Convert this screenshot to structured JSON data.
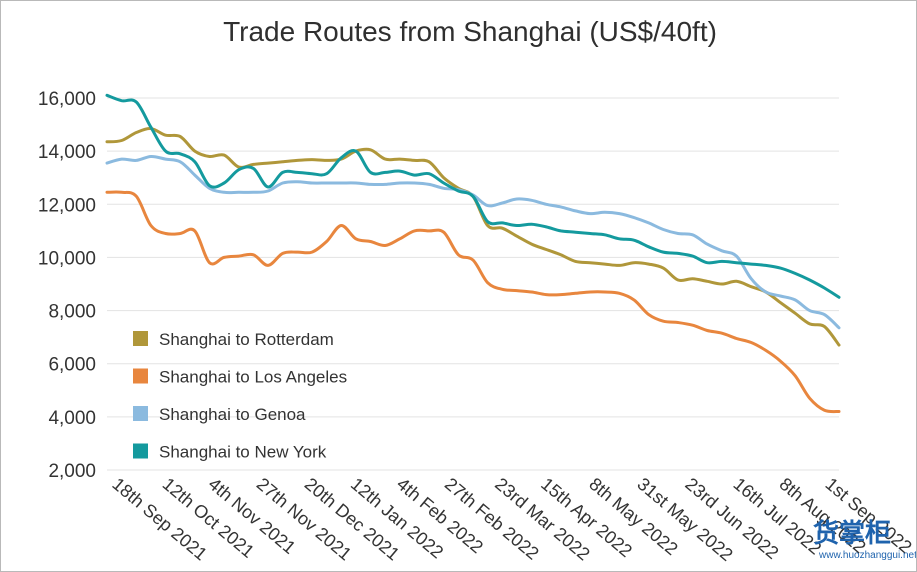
{
  "chart_data": {
    "type": "line",
    "title": "Trade Routes from Shanghai (US$/40ft)",
    "xlabel": "",
    "ylabel": "",
    "ylim": [
      2000,
      16000
    ],
    "y_ticks": [
      "2,000",
      "4,000",
      "6,000",
      "8,000",
      "10,000",
      "12,000",
      "14,000",
      "16,000"
    ],
    "y_tick_values": [
      2000,
      4000,
      6000,
      8000,
      10000,
      12000,
      14000,
      16000
    ],
    "x_ticks": [
      "18th Sep 2021",
      "12th Oct 2021",
      "4th Nov 2021",
      "27th Nov 2021",
      "20th Dec 2021",
      "12th Jan 2022",
      "4th Feb 2022",
      "27th Feb 2022",
      "23rd Mar 2022",
      "15th Apr 2022",
      "8th May 2022",
      "31st May 2022",
      "23rd Jun 2022",
      "16th Jul 2022",
      "8th Aug 2022",
      "1st Sep 2022"
    ],
    "x_tick_positions": [
      0,
      3.43,
      6.57,
      9.86,
      13.14,
      16.29,
      19.43,
      22.71,
      26.14,
      29.29,
      32.57,
      35.86,
      39.14,
      42.43,
      45.57,
      48.71
    ],
    "grid": true,
    "legend_position": "lower-left",
    "series": [
      {
        "name": "Shanghai to Rotterdam",
        "color": "#b0973a",
        "x": [
          0,
          1,
          2,
          3,
          4,
          5,
          6,
          7,
          8,
          9,
          10,
          11,
          12,
          13,
          14,
          15,
          16,
          17,
          18,
          19,
          20,
          21,
          22,
          23,
          24,
          25,
          26,
          27,
          28,
          29,
          30,
          31,
          32,
          33,
          34,
          35,
          36,
          37,
          38,
          39,
          40,
          41,
          42,
          43,
          44,
          45,
          46,
          47,
          48,
          49,
          50
        ],
        "values": [
          14350,
          14400,
          14700,
          14850,
          14600,
          14550,
          14000,
          13800,
          13850,
          13400,
          13500,
          13550,
          13600,
          13650,
          13680,
          13650,
          13700,
          14000,
          14050,
          13700,
          13700,
          13650,
          13600,
          13000,
          12600,
          12300,
          11200,
          11100,
          10800,
          10500,
          10300,
          10100,
          9850,
          9800,
          9750,
          9700,
          9800,
          9750,
          9600,
          9150,
          9200,
          9100,
          9000,
          9100,
          8900,
          8700,
          8300,
          7900,
          7500,
          7400,
          6700
        ]
      },
      {
        "name": "Shanghai to Los Angeles",
        "color": "#e8863e",
        "x": [
          0,
          1,
          2,
          3,
          4,
          5,
          6,
          7,
          8,
          9,
          10,
          11,
          12,
          13,
          14,
          15,
          16,
          17,
          18,
          19,
          20,
          21,
          22,
          23,
          24,
          25,
          26,
          27,
          28,
          29,
          30,
          31,
          32,
          33,
          34,
          35,
          36,
          37,
          38,
          39,
          40,
          41,
          42,
          43,
          44,
          45,
          46,
          47,
          48,
          49,
          50
        ],
        "values": [
          12450,
          12450,
          12300,
          11200,
          10900,
          10900,
          11000,
          9800,
          10000,
          10050,
          10100,
          9700,
          10150,
          10200,
          10200,
          10600,
          11200,
          10700,
          10600,
          10450,
          10700,
          11000,
          11000,
          10950,
          10100,
          9900,
          9050,
          8800,
          8750,
          8700,
          8600,
          8600,
          8650,
          8700,
          8700,
          8650,
          8400,
          7850,
          7600,
          7550,
          7450,
          7250,
          7150,
          6950,
          6800,
          6500,
          6100,
          5550,
          4700,
          4250,
          4200
        ]
      },
      {
        "name": "Shanghai to Genoa",
        "color": "#8bbadf",
        "x": [
          0,
          1,
          2,
          3,
          4,
          5,
          6,
          7,
          8,
          9,
          10,
          11,
          12,
          13,
          14,
          15,
          16,
          17,
          18,
          19,
          20,
          21,
          22,
          23,
          24,
          25,
          26,
          27,
          28,
          29,
          30,
          31,
          32,
          33,
          34,
          35,
          36,
          37,
          38,
          39,
          40,
          41,
          42,
          43,
          44,
          45,
          46,
          47,
          48,
          49,
          50
        ],
        "values": [
          13550,
          13700,
          13650,
          13800,
          13700,
          13600,
          13100,
          12600,
          12450,
          12450,
          12450,
          12500,
          12800,
          12850,
          12800,
          12800,
          12800,
          12800,
          12750,
          12750,
          12800,
          12800,
          12750,
          12600,
          12550,
          12350,
          11950,
          12050,
          12200,
          12150,
          12000,
          11900,
          11750,
          11650,
          11700,
          11650,
          11500,
          11300,
          11050,
          10900,
          10850,
          10500,
          10250,
          10050,
          9200,
          8700,
          8550,
          8400,
          8000,
          7850,
          7350
        ]
      },
      {
        "name": "Shanghai to New York",
        "color": "#149a9e",
        "x": [
          0,
          1,
          2,
          3,
          4,
          5,
          6,
          7,
          8,
          9,
          10,
          11,
          12,
          13,
          14,
          15,
          16,
          17,
          18,
          19,
          20,
          21,
          22,
          23,
          24,
          25,
          26,
          27,
          28,
          29,
          30,
          31,
          32,
          33,
          34,
          35,
          36,
          37,
          38,
          39,
          40,
          41,
          42,
          43,
          44,
          45,
          46,
          47,
          48,
          49,
          50
        ],
        "values": [
          16100,
          15900,
          15850,
          14900,
          14000,
          13900,
          13600,
          12700,
          12800,
          13300,
          13350,
          12650,
          13200,
          13200,
          13150,
          13150,
          13750,
          14000,
          13200,
          13200,
          13250,
          13100,
          13150,
          12800,
          12500,
          12300,
          11350,
          11300,
          11200,
          11250,
          11150,
          11000,
          10950,
          10900,
          10850,
          10700,
          10650,
          10400,
          10200,
          10150,
          10050,
          9800,
          9850,
          9800,
          9750,
          9700,
          9600,
          9400,
          9150,
          8850,
          8500
        ]
      }
    ]
  },
  "watermark": {
    "text": "货掌柜",
    "url": "www.huozhanggui.net",
    "color": "#1f63ad"
  }
}
